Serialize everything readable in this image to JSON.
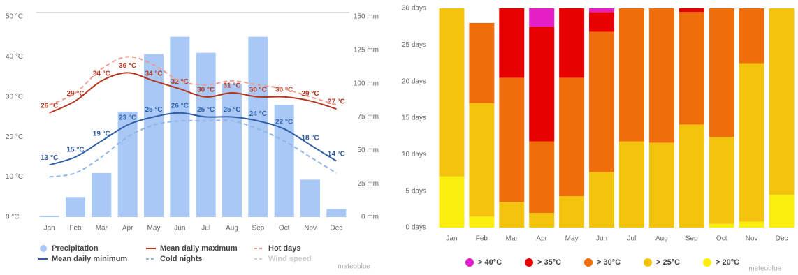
{
  "chart_data": [
    {
      "type": "combo",
      "categories": [
        "Jan",
        "Feb",
        "Mar",
        "Apr",
        "May",
        "Jun",
        "Jul",
        "Aug",
        "Sep",
        "Oct",
        "Nov",
        "Dec"
      ],
      "ylim": [
        0,
        50
      ],
      "yticks": [
        {
          "value": 0,
          "label": "0 °C"
        },
        {
          "value": 10,
          "label": "10 °C"
        },
        {
          "value": 20,
          "label": "20 °C"
        },
        {
          "value": 30,
          "label": "30 °C"
        },
        {
          "value": 40,
          "label": "40 °C"
        },
        {
          "value": 50,
          "label": "50 °C"
        }
      ],
      "y2lim": [
        0,
        150
      ],
      "y2ticks": [
        {
          "value": 0,
          "label": "0 mm"
        },
        {
          "value": 25,
          "label": "25 mm"
        },
        {
          "value": 50,
          "label": "50 mm"
        },
        {
          "value": 75,
          "label": "75 mm"
        },
        {
          "value": 100,
          "label": "100 mm"
        },
        {
          "value": 125,
          "label": "125 mm"
        },
        {
          "value": 150,
          "label": "150 mm"
        }
      ],
      "grid": false,
      "series": [
        {
          "name": "Precipitation",
          "kind": "bar",
          "axis": "y2",
          "color": "#a9c8f5",
          "values": [
            1,
            15,
            33,
            79,
            122,
            135,
            123,
            100,
            135,
            84,
            28,
            6
          ]
        },
        {
          "name": "Mean daily maximum",
          "kind": "line",
          "color": "#b5361f",
          "dashed": false,
          "values": [
            26,
            29,
            34,
            36,
            34,
            32,
            30,
            31,
            30,
            30,
            29,
            27
          ],
          "value_labels": [
            "26 °C",
            "29 °C",
            "34 °C",
            "36 °C",
            "34 °C",
            "32 °C",
            "30 °C",
            "31 °C",
            "30 °C",
            "30 °C",
            "29 °C",
            "27 °C"
          ]
        },
        {
          "name": "Hot days",
          "kind": "line",
          "color": "#f19a8f",
          "dashed": true,
          "values": [
            28,
            31,
            37,
            40,
            38,
            34,
            33,
            34,
            33,
            32,
            30,
            28
          ]
        },
        {
          "name": "Mean daily minimum",
          "kind": "line",
          "color": "#2f5fa8",
          "dashed": false,
          "values": [
            13,
            15,
            19,
            23,
            25,
            26,
            25,
            25,
            24,
            22,
            18,
            14
          ],
          "value_labels": [
            "13 °C",
            "15 °C",
            "19 °C",
            "23 °C",
            "25 °C",
            "26 °C",
            "25 °C",
            "25 °C",
            "24 °C",
            "22 °C",
            "18 °C",
            "14 °C"
          ]
        },
        {
          "name": "Cold nights",
          "kind": "line",
          "color": "#8fb6e8",
          "dashed": true,
          "values": [
            10,
            11,
            15,
            20,
            23,
            24,
            24,
            24,
            22,
            19,
            15,
            11
          ]
        },
        {
          "name": "Wind speed",
          "kind": "line",
          "color": "#d0d0d0",
          "dashed": true,
          "values": [
            null,
            null,
            null,
            null,
            null,
            null,
            null,
            null,
            null,
            null,
            null,
            null
          ]
        }
      ],
      "watermark": "meteoblue"
    },
    {
      "type": "stacked_bar",
      "categories": [
        "Jan",
        "Feb",
        "Mar",
        "Apr",
        "May",
        "Jun",
        "Jul",
        "Aug",
        "Sep",
        "Oct",
        "Nov",
        "Dec"
      ],
      "ylim": [
        0,
        30
      ],
      "yticks": [
        {
          "value": 0,
          "label": "0 days"
        },
        {
          "value": 5,
          "label": "5 days"
        },
        {
          "value": 10,
          "label": "10 days"
        },
        {
          "value": 15,
          "label": "15 days"
        },
        {
          "value": 20,
          "label": "20 days"
        },
        {
          "value": 25,
          "label": "25 days"
        },
        {
          "value": 30,
          "label": "30 days"
        }
      ],
      "series": [
        {
          "name": "> 40°C",
          "color": "#e320c6",
          "values": [
            0,
            0,
            0,
            2.5,
            0,
            0.5,
            0,
            0,
            0,
            0,
            0,
            0
          ]
        },
        {
          "name": "> 35°C",
          "color": "#e60000",
          "values": [
            0,
            0,
            9.5,
            15.7,
            9.5,
            2.7,
            0,
            0,
            0.5,
            0,
            0,
            0
          ]
        },
        {
          "name": "> 30°C",
          "color": "#f06d0c",
          "values": [
            0,
            11,
            17,
            9.8,
            16.2,
            19.2,
            18.2,
            18.4,
            15.4,
            17.6,
            7.5,
            0
          ]
        },
        {
          "name": "> 25°C",
          "color": "#f3c30e",
          "values": [
            23,
            15.5,
            3.5,
            2,
            4.3,
            7.6,
            11.8,
            11.6,
            14.1,
            11.9,
            21.7,
            25.5
          ]
        },
        {
          "name": "> 20°C",
          "color": "#fbee0e",
          "values": [
            7,
            1.5,
            0,
            0,
            0,
            0,
            0,
            0,
            0,
            0.5,
            0.8,
            4.5
          ]
        }
      ],
      "watermark": "meteoblue"
    }
  ]
}
